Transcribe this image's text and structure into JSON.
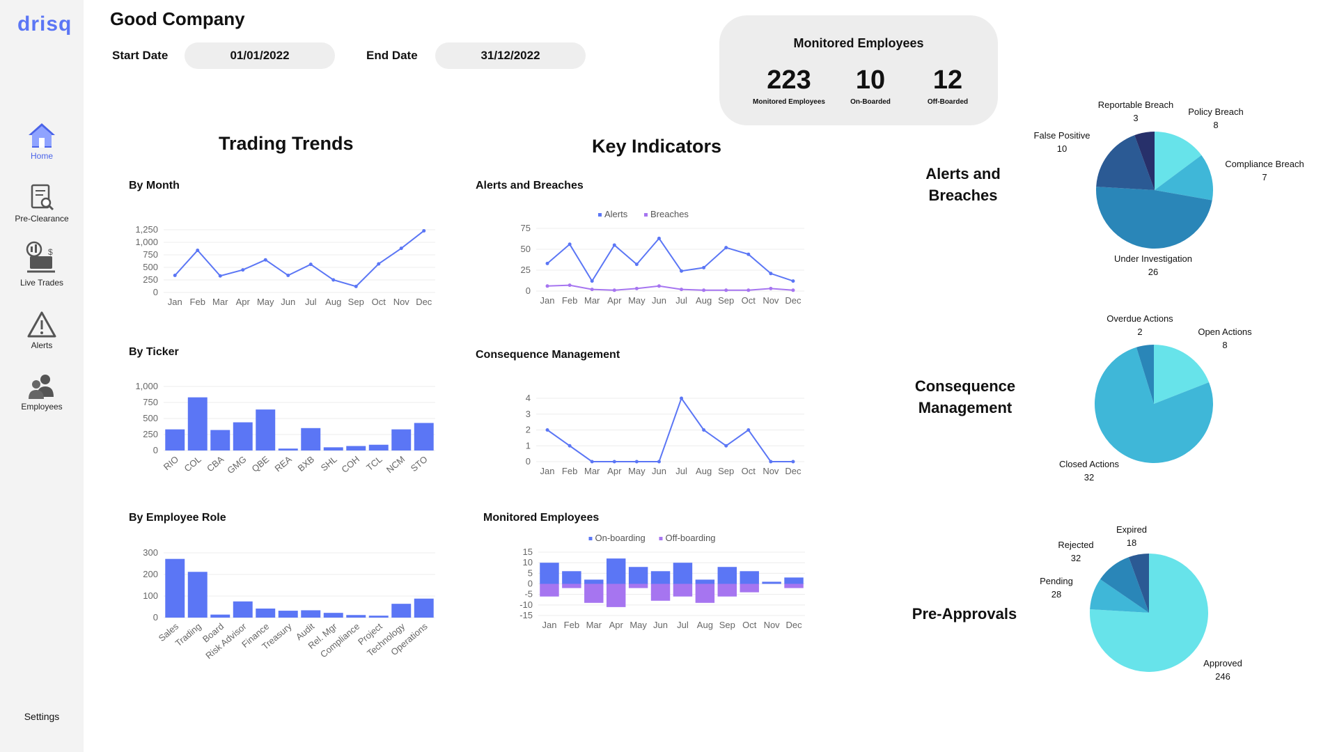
{
  "app": {
    "logo": "drisq",
    "company": "Good Company"
  },
  "nav": [
    {
      "label": "Home",
      "icon": "home-icon",
      "active": true
    },
    {
      "label": "Pre-Clearance",
      "icon": "document-search-icon"
    },
    {
      "label": "Live Trades",
      "icon": "trades-chart-icon"
    },
    {
      "label": "Alerts",
      "icon": "warning-icon"
    },
    {
      "label": "Employees",
      "icon": "people-icon"
    }
  ],
  "settings_label": "Settings",
  "filters": {
    "start_label": "Start Date",
    "start_value": "01/01/2022",
    "end_label": "End Date",
    "end_value": "31/12/2022"
  },
  "kpis": {
    "title": "Monitored Employees",
    "items": [
      {
        "value": "223",
        "label": "Monitored Employees"
      },
      {
        "value": "10",
        "label": "On-Boarded"
      },
      {
        "value": "12",
        "label": "Off-Boarded"
      }
    ]
  },
  "sections": {
    "trading": "Trading Trends",
    "key": "Key Indicators"
  },
  "pie_headings": {
    "alerts": [
      "Alerts and",
      "Breaches"
    ],
    "consequence": [
      "Consequence",
      "Management"
    ],
    "preapprovals": [
      "Pre-Approvals"
    ]
  },
  "colors": {
    "primary": "#5b76f5",
    "secondary": "#a675f0",
    "accent": "#4a63e8"
  },
  "chart_data": [
    {
      "id": "by_month",
      "type": "line",
      "title": "By Month",
      "categories": [
        "Jan",
        "Feb",
        "Mar",
        "Apr",
        "May",
        "Jun",
        "Jul",
        "Aug",
        "Sep",
        "Oct",
        "Nov",
        "Dec"
      ],
      "values": [
        340,
        840,
        330,
        450,
        650,
        340,
        560,
        250,
        120,
        570,
        880,
        1230
      ],
      "ylim": [
        0,
        1250
      ],
      "yticks": [
        "0",
        "250",
        "500",
        "750",
        "1,000",
        "1,250"
      ],
      "ytick_values": [
        0,
        250,
        500,
        750,
        1000,
        1250
      ]
    },
    {
      "id": "by_ticker",
      "type": "bar",
      "title": "By Ticker",
      "categories": [
        "RIO",
        "COL",
        "CBA",
        "GMG",
        "QBE",
        "REA",
        "BXB",
        "SHL",
        "COH",
        "TCL",
        "NCM",
        "STO"
      ],
      "values": [
        330,
        830,
        320,
        440,
        640,
        30,
        350,
        50,
        70,
        90,
        330,
        430
      ],
      "ylim": [
        0,
        1000
      ],
      "yticks": [
        "0",
        "250",
        "500",
        "750",
        "1,000"
      ],
      "ytick_values": [
        0,
        250,
        500,
        750,
        1000
      ]
    },
    {
      "id": "by_role",
      "type": "bar",
      "title": "By Employee Role",
      "categories": [
        "Sales",
        "Trading",
        "Board",
        "Risk Advisor",
        "Finance",
        "Treasury",
        "Audit",
        "Rel. Mgr",
        "Compliance",
        "Project",
        "Technology",
        "Operations"
      ],
      "values": [
        272,
        212,
        14,
        75,
        42,
        32,
        34,
        22,
        12,
        9,
        64,
        88
      ],
      "ylim": [
        0,
        300
      ],
      "yticks": [
        "0",
        "100",
        "200",
        "300"
      ],
      "ytick_values": [
        0,
        100,
        200,
        300
      ]
    },
    {
      "id": "alerts_breaches",
      "type": "line",
      "title": "Alerts and Breaches",
      "categories": [
        "Jan",
        "Feb",
        "Mar",
        "Apr",
        "May",
        "Jun",
        "Jul",
        "Aug",
        "Sep",
        "Oct",
        "Nov",
        "Dec"
      ],
      "series": [
        {
          "name": "Alerts",
          "color": "#5b76f5",
          "values": [
            33,
            56,
            12,
            55,
            32,
            63,
            24,
            28,
            52,
            44,
            21,
            12
          ]
        },
        {
          "name": "Breaches",
          "color": "#a675f0",
          "values": [
            6,
            7,
            2,
            1,
            3,
            6,
            2,
            1,
            1,
            1,
            3,
            1
          ]
        }
      ],
      "ylim": [
        0,
        75
      ],
      "yticks": [
        "0",
        "25",
        "50",
        "75"
      ],
      "ytick_values": [
        0,
        25,
        50,
        75
      ],
      "legend": "top-center"
    },
    {
      "id": "consequence",
      "type": "line",
      "title": "Consequence Management",
      "categories": [
        "Jan",
        "Feb",
        "Mar",
        "Apr",
        "May",
        "Jun",
        "Jul",
        "Aug",
        "Sep",
        "Oct",
        "Nov",
        "Dec"
      ],
      "values": [
        2,
        1,
        0,
        0,
        0,
        0,
        4,
        2,
        1,
        2,
        0,
        0
      ],
      "ylim": [
        0,
        4
      ],
      "yticks": [
        "0",
        "1",
        "2",
        "3",
        "4"
      ],
      "ytick_values": [
        0,
        1,
        2,
        3,
        4
      ]
    },
    {
      "id": "monitored_employees",
      "type": "bar",
      "title": "Monitored Employees",
      "categories": [
        "Jan",
        "Feb",
        "Mar",
        "Apr",
        "May",
        "Jun",
        "Jul",
        "Aug",
        "Sep",
        "Oct",
        "Nov",
        "Dec"
      ],
      "series": [
        {
          "name": "On-boarding",
          "color": "#5b76f5",
          "values": [
            10,
            6,
            2,
            12,
            8,
            6,
            10,
            2,
            8,
            6,
            1,
            3
          ]
        },
        {
          "name": "Off-boarding",
          "color": "#a675f0",
          "values": [
            -6,
            -2,
            -9,
            -11,
            -2,
            -8,
            -6,
            -9,
            -6,
            -4,
            0,
            -2
          ]
        }
      ],
      "ylim": [
        -15,
        15
      ],
      "yticks": [
        "15",
        "10",
        "5",
        "0",
        "-5",
        "-10",
        "-15"
      ],
      "ytick_values": [
        15,
        10,
        5,
        0,
        -5,
        -10,
        -15
      ],
      "legend": "top-center"
    },
    {
      "id": "pie_alerts",
      "type": "pie",
      "slices": [
        {
          "label": "Policy Breach",
          "value": 8,
          "color": "#67e3ea"
        },
        {
          "label": "Compliance Breach",
          "value": 7,
          "color": "#3fb7d8"
        },
        {
          "label": "Under Investigation",
          "value": 26,
          "color": "#2a86b8"
        },
        {
          "label": "False Positive",
          "value": 10,
          "color": "#2b5a94"
        },
        {
          "label": "Reportable Breach",
          "value": 3,
          "color": "#27306a"
        }
      ]
    },
    {
      "id": "pie_consequence",
      "type": "pie",
      "slices": [
        {
          "label": "Open Actions",
          "value": 8,
          "color": "#67e3ea"
        },
        {
          "label": "Closed Actions",
          "value": 32,
          "color": "#3fb7d8"
        },
        {
          "label": "Overdue Actions",
          "value": 2,
          "color": "#2a86b8"
        }
      ]
    },
    {
      "id": "pie_preapprovals",
      "type": "pie",
      "slices": [
        {
          "label": "Approved",
          "value": 246,
          "color": "#67e3ea"
        },
        {
          "label": "Pending",
          "value": 28,
          "color": "#3fb7d8"
        },
        {
          "label": "Rejected",
          "value": 32,
          "color": "#2a86b8"
        },
        {
          "label": "Expired",
          "value": 18,
          "color": "#2b5a94"
        }
      ]
    }
  ]
}
